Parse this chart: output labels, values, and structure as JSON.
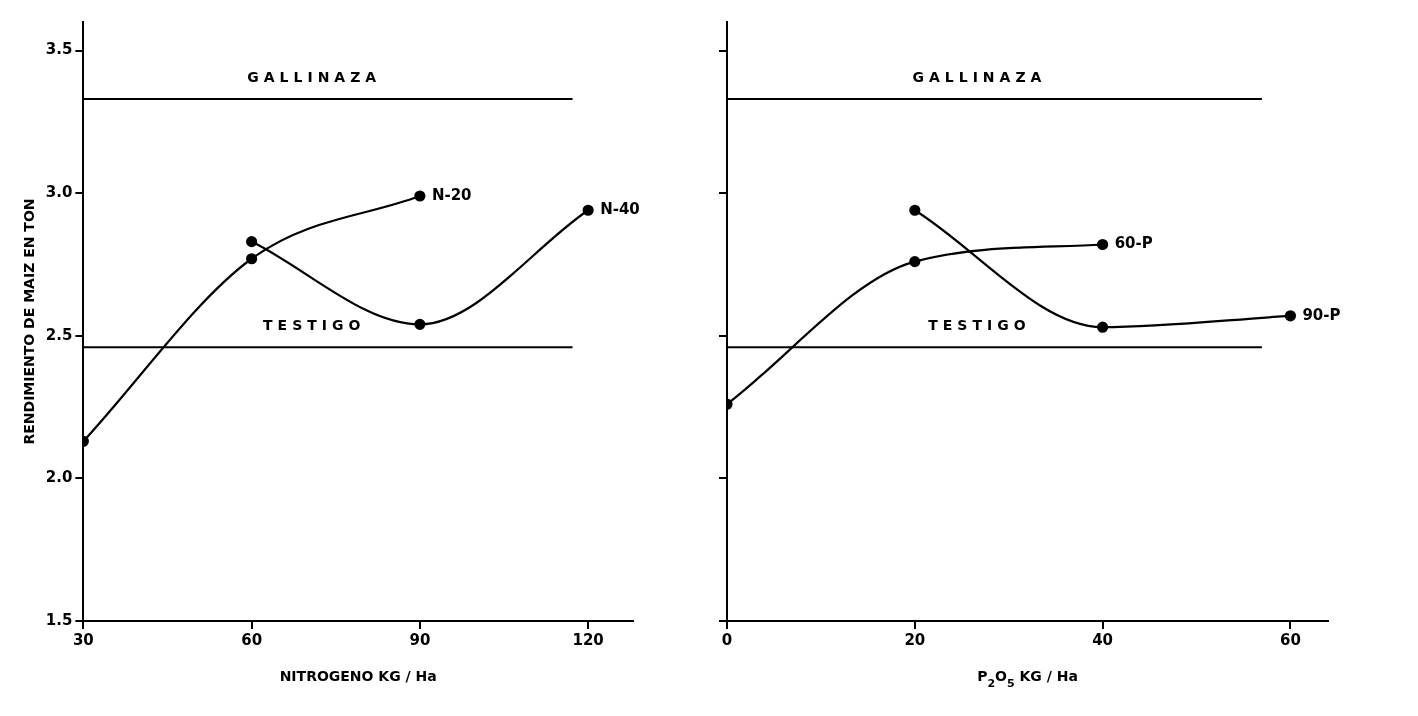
{
  "chart_data": [
    {
      "type": "line",
      "xlabel": "NITROGENO KG / Ha",
      "ylabel": "RENDIMIENTO DE MAIZ EN TON",
      "xlim": [
        30,
        128
      ],
      "xticks": [
        30,
        60,
        90,
        120
      ],
      "ylim": [
        1.5,
        3.6
      ],
      "yticks": [
        1.5,
        {
          "value": 2,
          "label": "2.0"
        },
        2.5,
        {
          "value": 3,
          "label": "3.0"
        },
        3.5
      ],
      "marker": "circle",
      "line_style": "solid",
      "series": [
        {
          "name": "N-20",
          "color": "#000000",
          "x": [
            30,
            60,
            90
          ],
          "values": [
            2.13,
            2.77,
            2.99
          ]
        },
        {
          "name": "N-40",
          "color": "#000000",
          "x": [
            60,
            90,
            120
          ],
          "values": [
            2.83,
            2.54,
            2.94
          ]
        }
      ],
      "ref_lines": [
        {
          "axis": "y",
          "value": 3.33,
          "label": "GALLINAZA",
          "color": "#000000"
        },
        {
          "axis": "y",
          "value": 2.46,
          "label": "TESTIGO",
          "color": "#000000"
        }
      ]
    },
    {
      "type": "line",
      "xlabel": "P$_{2}$O$_{5}$ KG / Ha",
      "xlim": [
        0,
        64
      ],
      "xticks": [
        0,
        20,
        40,
        60
      ],
      "ylim": [
        1.5,
        3.6
      ],
      "yticks": [
        {
          "value": 1.5,
          "label": null
        },
        {
          "value": 2,
          "label": null
        },
        {
          "value": 2.5,
          "label": null
        },
        {
          "value": 3,
          "label": null
        },
        {
          "value": 3.5,
          "label": null
        }
      ],
      "tick_labels": "x",
      "marker": "circle",
      "line_style": "solid",
      "series": [
        {
          "name": "60-P",
          "color": "#000000",
          "x": [
            0,
            20,
            40
          ],
          "values": [
            2.26,
            2.76,
            2.82
          ]
        },
        {
          "name": "90-P",
          "color": "#000000",
          "x": [
            20,
            40,
            60
          ],
          "values": [
            2.94,
            2.53,
            2.57
          ]
        }
      ],
      "ref_lines": [
        {
          "axis": "y",
          "value": 3.33,
          "label": "GALLINAZA",
          "color": "#000000"
        },
        {
          "axis": "y",
          "value": 2.46,
          "label": "TESTIGO",
          "color": "#000000"
        }
      ]
    }
  ]
}
